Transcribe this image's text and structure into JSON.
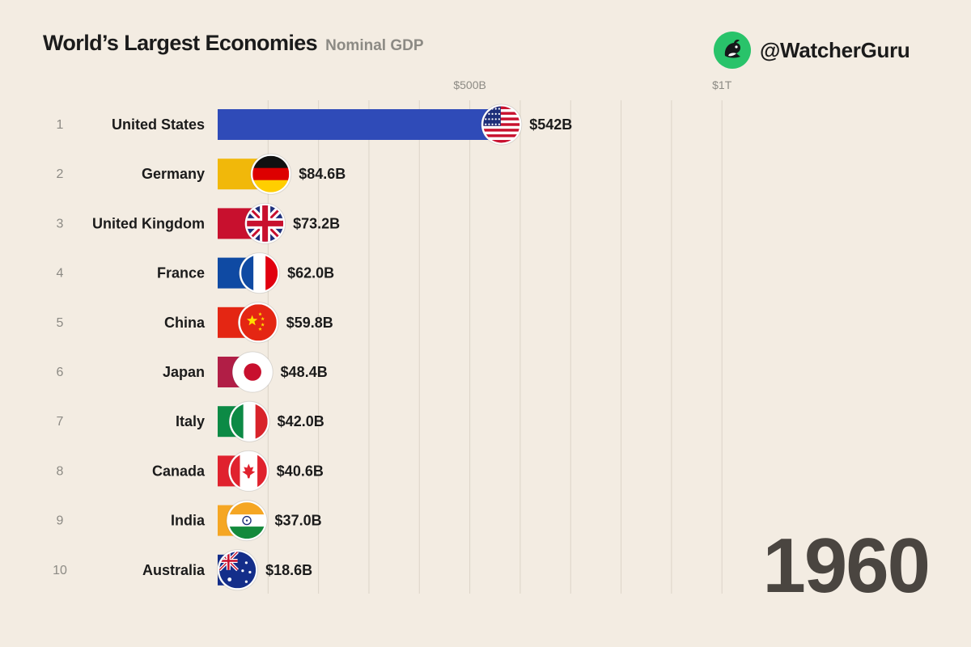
{
  "header": {
    "title": "World’s Largest Economies",
    "subtitle": "Nominal GDP"
  },
  "brand": {
    "handle": "@WatcherGuru",
    "logo_icon": "watcherguru-orca-logo-icon",
    "logo_color": "#29c36a"
  },
  "year": "1960",
  "chart_data": {
    "type": "bar",
    "orientation": "horizontal",
    "title": "World’s Largest Economies",
    "subtitle": "Nominal GDP",
    "xlabel": "",
    "ylabel": "",
    "x_unit": "USD",
    "x_ticks": [
      {
        "value": 500,
        "label": "$500B"
      },
      {
        "value": 1000,
        "label": "$1T"
      }
    ],
    "gridlines": true,
    "grid_minor_step": 100,
    "xlim": [
      0,
      1000
    ],
    "series": [
      {
        "ranks": [
          "1",
          "2",
          "3",
          "4",
          "5",
          "6",
          "7",
          "8",
          "9",
          "10"
        ],
        "categories": [
          "United States",
          "Germany",
          "United Kingdom",
          "France",
          "China",
          "Japan",
          "Italy",
          "Canada",
          "India",
          "Australia"
        ],
        "values": [
          542,
          84.6,
          73.2,
          62.0,
          59.8,
          48.4,
          42.0,
          40.6,
          37.0,
          18.6
        ],
        "value_labels": [
          "$542B",
          "$84.6B",
          "$73.2B",
          "$62.0B",
          "$59.8B",
          "$48.4B",
          "$42.0B",
          "$40.6B",
          "$37.0B",
          "$18.6B"
        ],
        "colors": [
          "#2f4bb8",
          "#f1b80a",
          "#c8102e",
          "#0f4aa3",
          "#e42613",
          "#b11e46",
          "#0c8a45",
          "#e0222e",
          "#f5a623",
          "#142e8a"
        ],
        "flag_icons": [
          "usa-flag-icon",
          "germany-flag-icon",
          "uk-flag-icon",
          "france-flag-icon",
          "china-flag-icon",
          "japan-flag-icon",
          "italy-flag-icon",
          "canada-flag-icon",
          "india-flag-icon",
          "australia-flag-icon"
        ]
      }
    ]
  }
}
